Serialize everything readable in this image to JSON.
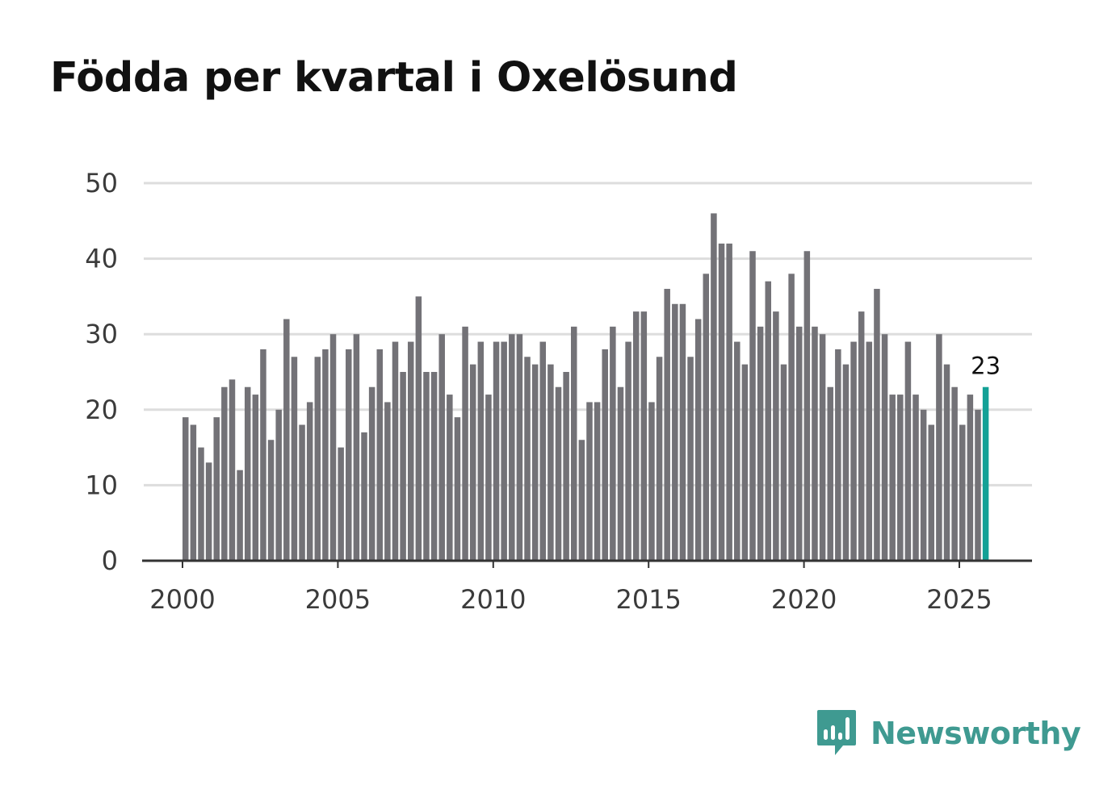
{
  "title": "Födda per kvartal i Oxelösund",
  "brand": {
    "name": "Newsworthy",
    "icon": "newsworthy-logo-icon",
    "color": "#3f9a91"
  },
  "colors": {
    "bar": "#737277",
    "highlight": "#13a196",
    "grid": "#dddddd",
    "axis": "#333333"
  },
  "chart_data": {
    "type": "bar",
    "title": "Födda per kvartal i Oxelösund",
    "xlabel": "",
    "ylabel": "",
    "ylim": [
      0,
      50
    ],
    "yticks": [
      0,
      10,
      20,
      30,
      40,
      50
    ],
    "xticks": [
      "2000",
      "2005",
      "2010",
      "2015",
      "2020",
      "2025"
    ],
    "grid": true,
    "start_year": 2000,
    "periods_per_year": 4,
    "values": [
      19,
      18,
      15,
      13,
      19,
      23,
      24,
      12,
      23,
      22,
      28,
      16,
      20,
      32,
      27,
      18,
      21,
      27,
      28,
      30,
      15,
      28,
      30,
      17,
      23,
      28,
      21,
      29,
      25,
      29,
      35,
      25,
      25,
      30,
      22,
      19,
      31,
      26,
      29,
      22,
      29,
      29,
      30,
      30,
      27,
      26,
      29,
      26,
      23,
      25,
      31,
      16,
      21,
      21,
      28,
      31,
      23,
      29,
      33,
      33,
      21,
      27,
      36,
      34,
      34,
      27,
      32,
      38,
      46,
      42,
      42,
      29,
      26,
      41,
      31,
      37,
      33,
      26,
      38,
      31,
      41,
      31,
      30,
      23,
      28,
      26,
      29,
      33,
      29,
      36,
      30,
      22,
      22,
      29,
      22,
      20,
      18,
      30,
      26,
      23,
      18,
      22,
      20,
      23
    ],
    "highlight_index": 103,
    "highlight_label": "23"
  }
}
